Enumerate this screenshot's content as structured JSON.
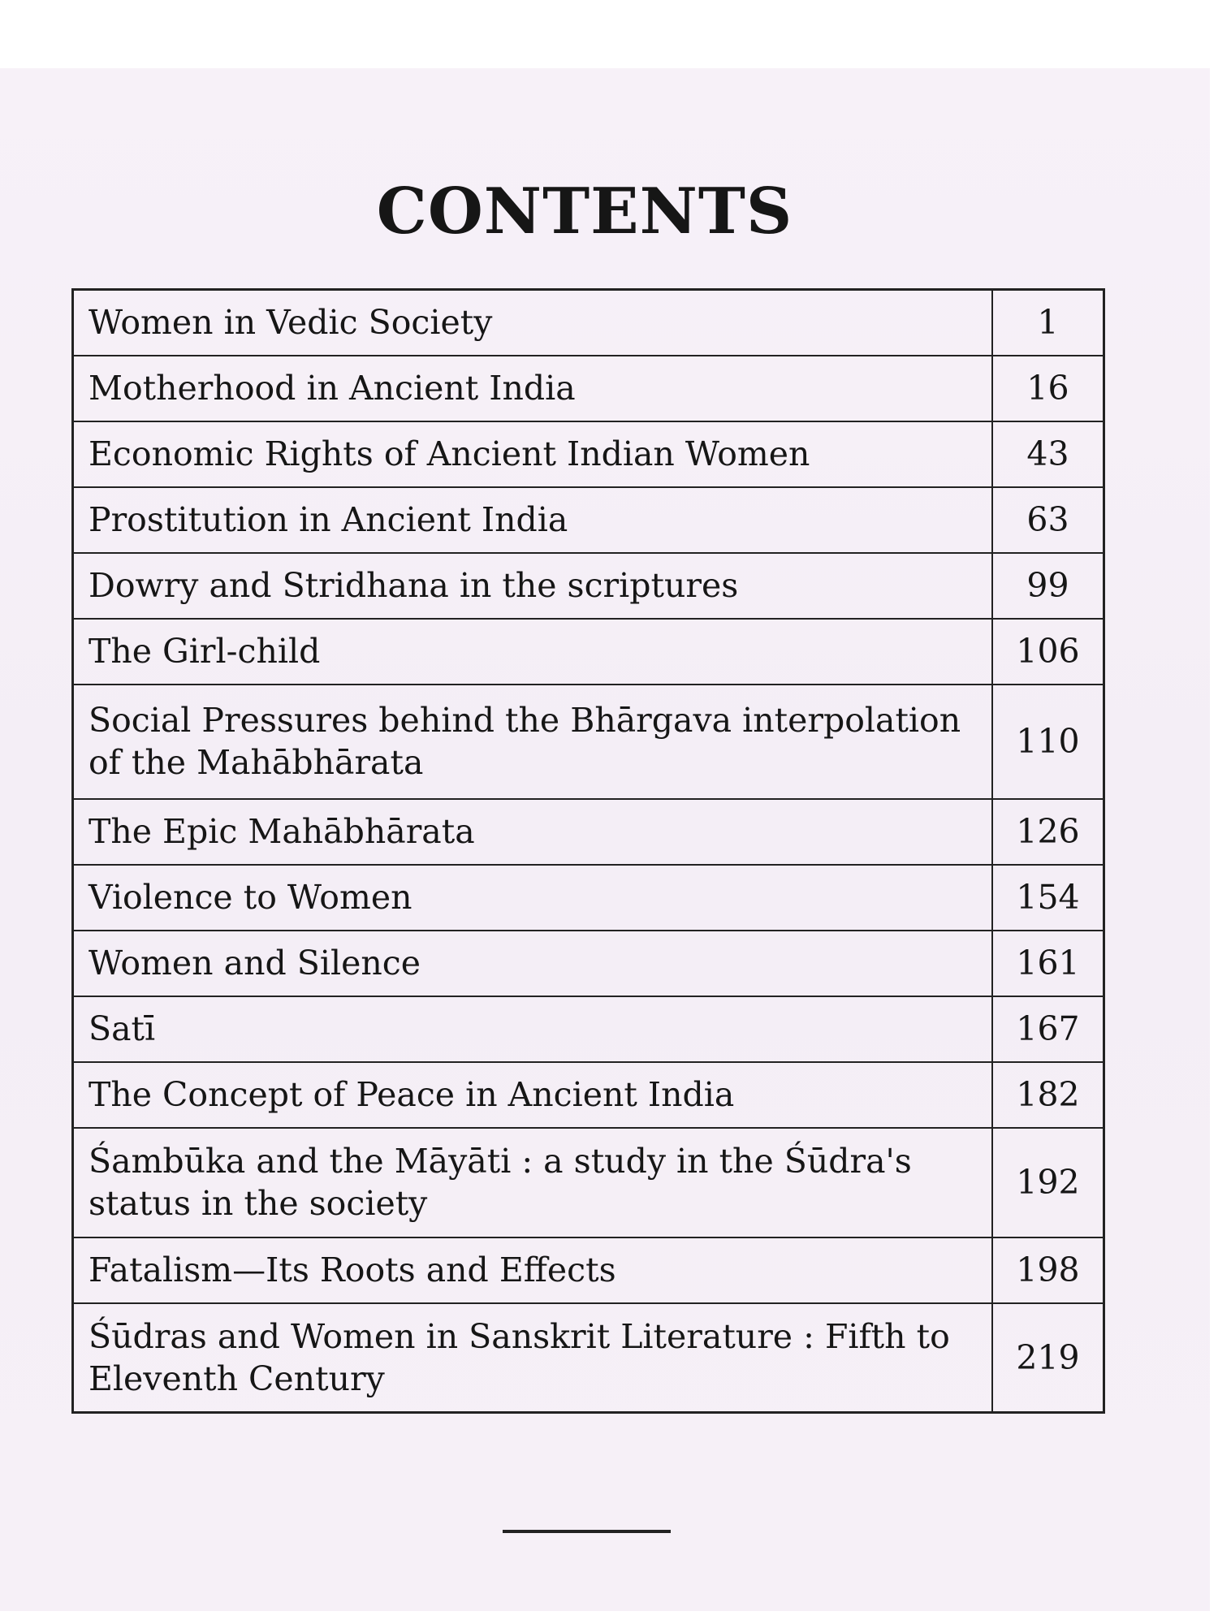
{
  "title": "CONTENTS",
  "entries": [
    {
      "title": "Women in Vedic Society",
      "page": "1"
    },
    {
      "title": "Motherhood in Ancient India",
      "page": "16"
    },
    {
      "title": "Economic Rights of Ancient Indian Women",
      "page": "43"
    },
    {
      "title": "Prostitution in Ancient India",
      "page": "63"
    },
    {
      "title": "Dowry and Stridhana in the scriptures",
      "page": "99"
    },
    {
      "title": "The Girl-child",
      "page": "106"
    },
    {
      "title": "Social Pressures behind the Bhārgava interpolation of the Mahābhārata",
      "page": "110"
    },
    {
      "title": "The Epic Mahābhārata",
      "page": "126"
    },
    {
      "title": "Violence  to Women",
      "page": "154"
    },
    {
      "title": "Women and Silence",
      "page": "161"
    },
    {
      "title": "Satī",
      "page": "167"
    },
    {
      "title": "The Concept of Peace in Ancient India",
      "page": "182"
    },
    {
      "title": "Śambūka and the Māyāti : a study in the Śūdra's status in the society",
      "page": "192"
    },
    {
      "title": "Fatalism—Its Roots and Effects",
      "page": "198"
    },
    {
      "title": "Śūdras and Women in Sanskrit Literature : Fifth to Eleventh Century",
      "page": "219"
    }
  ]
}
